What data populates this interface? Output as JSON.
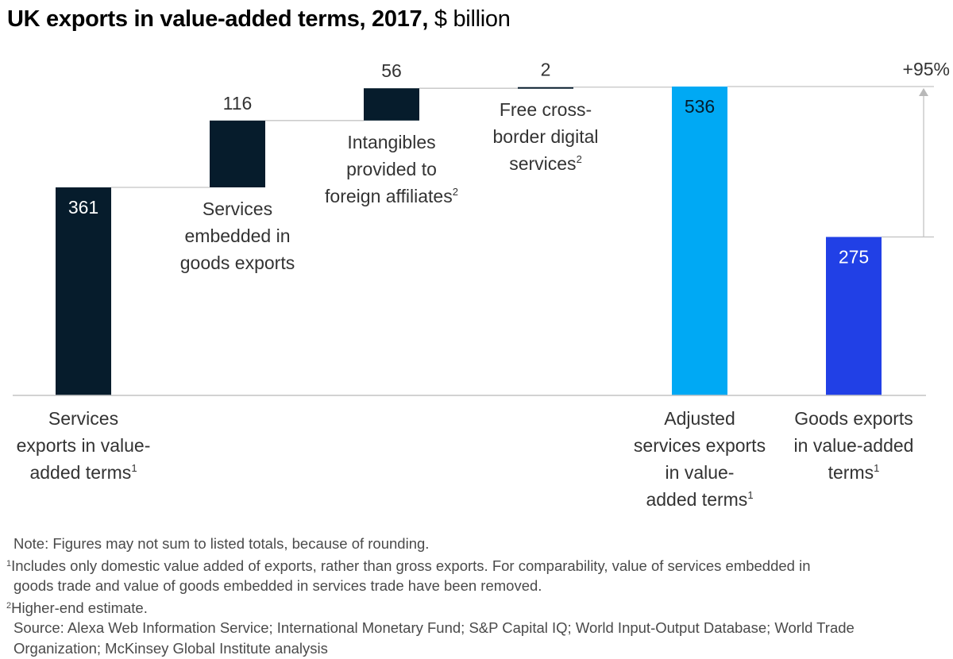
{
  "title": {
    "bold": "UK exports in value-added terms, 2017,",
    "unit": " $ billion"
  },
  "chart_data": {
    "type": "bar",
    "subtype": "waterfall",
    "title": "UK exports in value-added terms, 2017, $ billion",
    "xlabel": "",
    "ylabel": "",
    "ylim": [
      0,
      536
    ],
    "grid": false,
    "categories": [
      "Services exports in value-added terms",
      "Services embedded in goods exports",
      "Intangibles provided to foreign affiliates",
      "Free cross-border digital services",
      "Adjusted services exports in value-added terms",
      "Goods exports in value-added terms"
    ],
    "bars": [
      {
        "kind": "total",
        "value": 361,
        "base": 0,
        "label": "361",
        "color": "#061c2c",
        "label_color": "#ffffff",
        "label_pos": "inside",
        "category_lines": [
          "Services",
          "exports in value-",
          "added terms"
        ],
        "footnote": "1",
        "category_pos": "below"
      },
      {
        "kind": "increment",
        "value": 116,
        "base": 361,
        "label": "116",
        "color": "#061c2c",
        "label_color": "#333333",
        "label_pos": "above",
        "category_lines": [
          "Services",
          "embedded in",
          "goods exports"
        ],
        "footnote": "",
        "category_pos": "under-bar"
      },
      {
        "kind": "increment",
        "value": 56,
        "base": 477,
        "label": "56",
        "color": "#061c2c",
        "label_color": "#333333",
        "label_pos": "above",
        "category_lines": [
          "Intangibles",
          "provided to",
          "foreign affiliates"
        ],
        "footnote": "2",
        "category_pos": "under-bar"
      },
      {
        "kind": "increment",
        "value": 2,
        "base": 533,
        "label": "2",
        "color": "#061c2c",
        "label_color": "#333333",
        "label_pos": "above",
        "category_lines": [
          "Free cross-",
          "border digital",
          "services"
        ],
        "footnote": "2",
        "category_pos": "under-bar"
      },
      {
        "kind": "total",
        "value": 536,
        "base": 0,
        "label": "536",
        "color": "#00a9f4",
        "label_color": "#051c2c",
        "label_pos": "inside",
        "category_lines": [
          "Adjusted",
          "services exports",
          "in value-",
          "added terms"
        ],
        "footnote": "1",
        "category_pos": "below"
      },
      {
        "kind": "total",
        "value": 275,
        "base": 0,
        "label": "275",
        "color": "#2140e6",
        "label_color": "#ffffff",
        "label_pos": "inside",
        "category_lines": [
          "Goods exports",
          "in value-added",
          "terms"
        ],
        "footnote": "1",
        "category_pos": "below"
      }
    ],
    "annotation": {
      "text": "+95%",
      "from_value": 275,
      "to_value": 536,
      "description": "Adjusted services exports exceed goods exports by 95%"
    }
  },
  "notes": {
    "note": "Note: Figures may not sum to listed totals, because of rounding.",
    "fn1_mark": "1",
    "fn1_line1": "Includes only domestic value added of exports, rather than gross exports. For comparability, value of services embedded in",
    "fn1_line2": "goods trade and value of goods embedded in services trade have been removed.",
    "fn2_mark": "2",
    "fn2": "Higher-end estimate.",
    "source_line1": "Source: Alexa Web Information Service; International Monetary Fund; S&P Capital IQ; World Input-Output Database; World Trade",
    "source_line2": "Organization; McKinsey Global Institute analysis"
  }
}
